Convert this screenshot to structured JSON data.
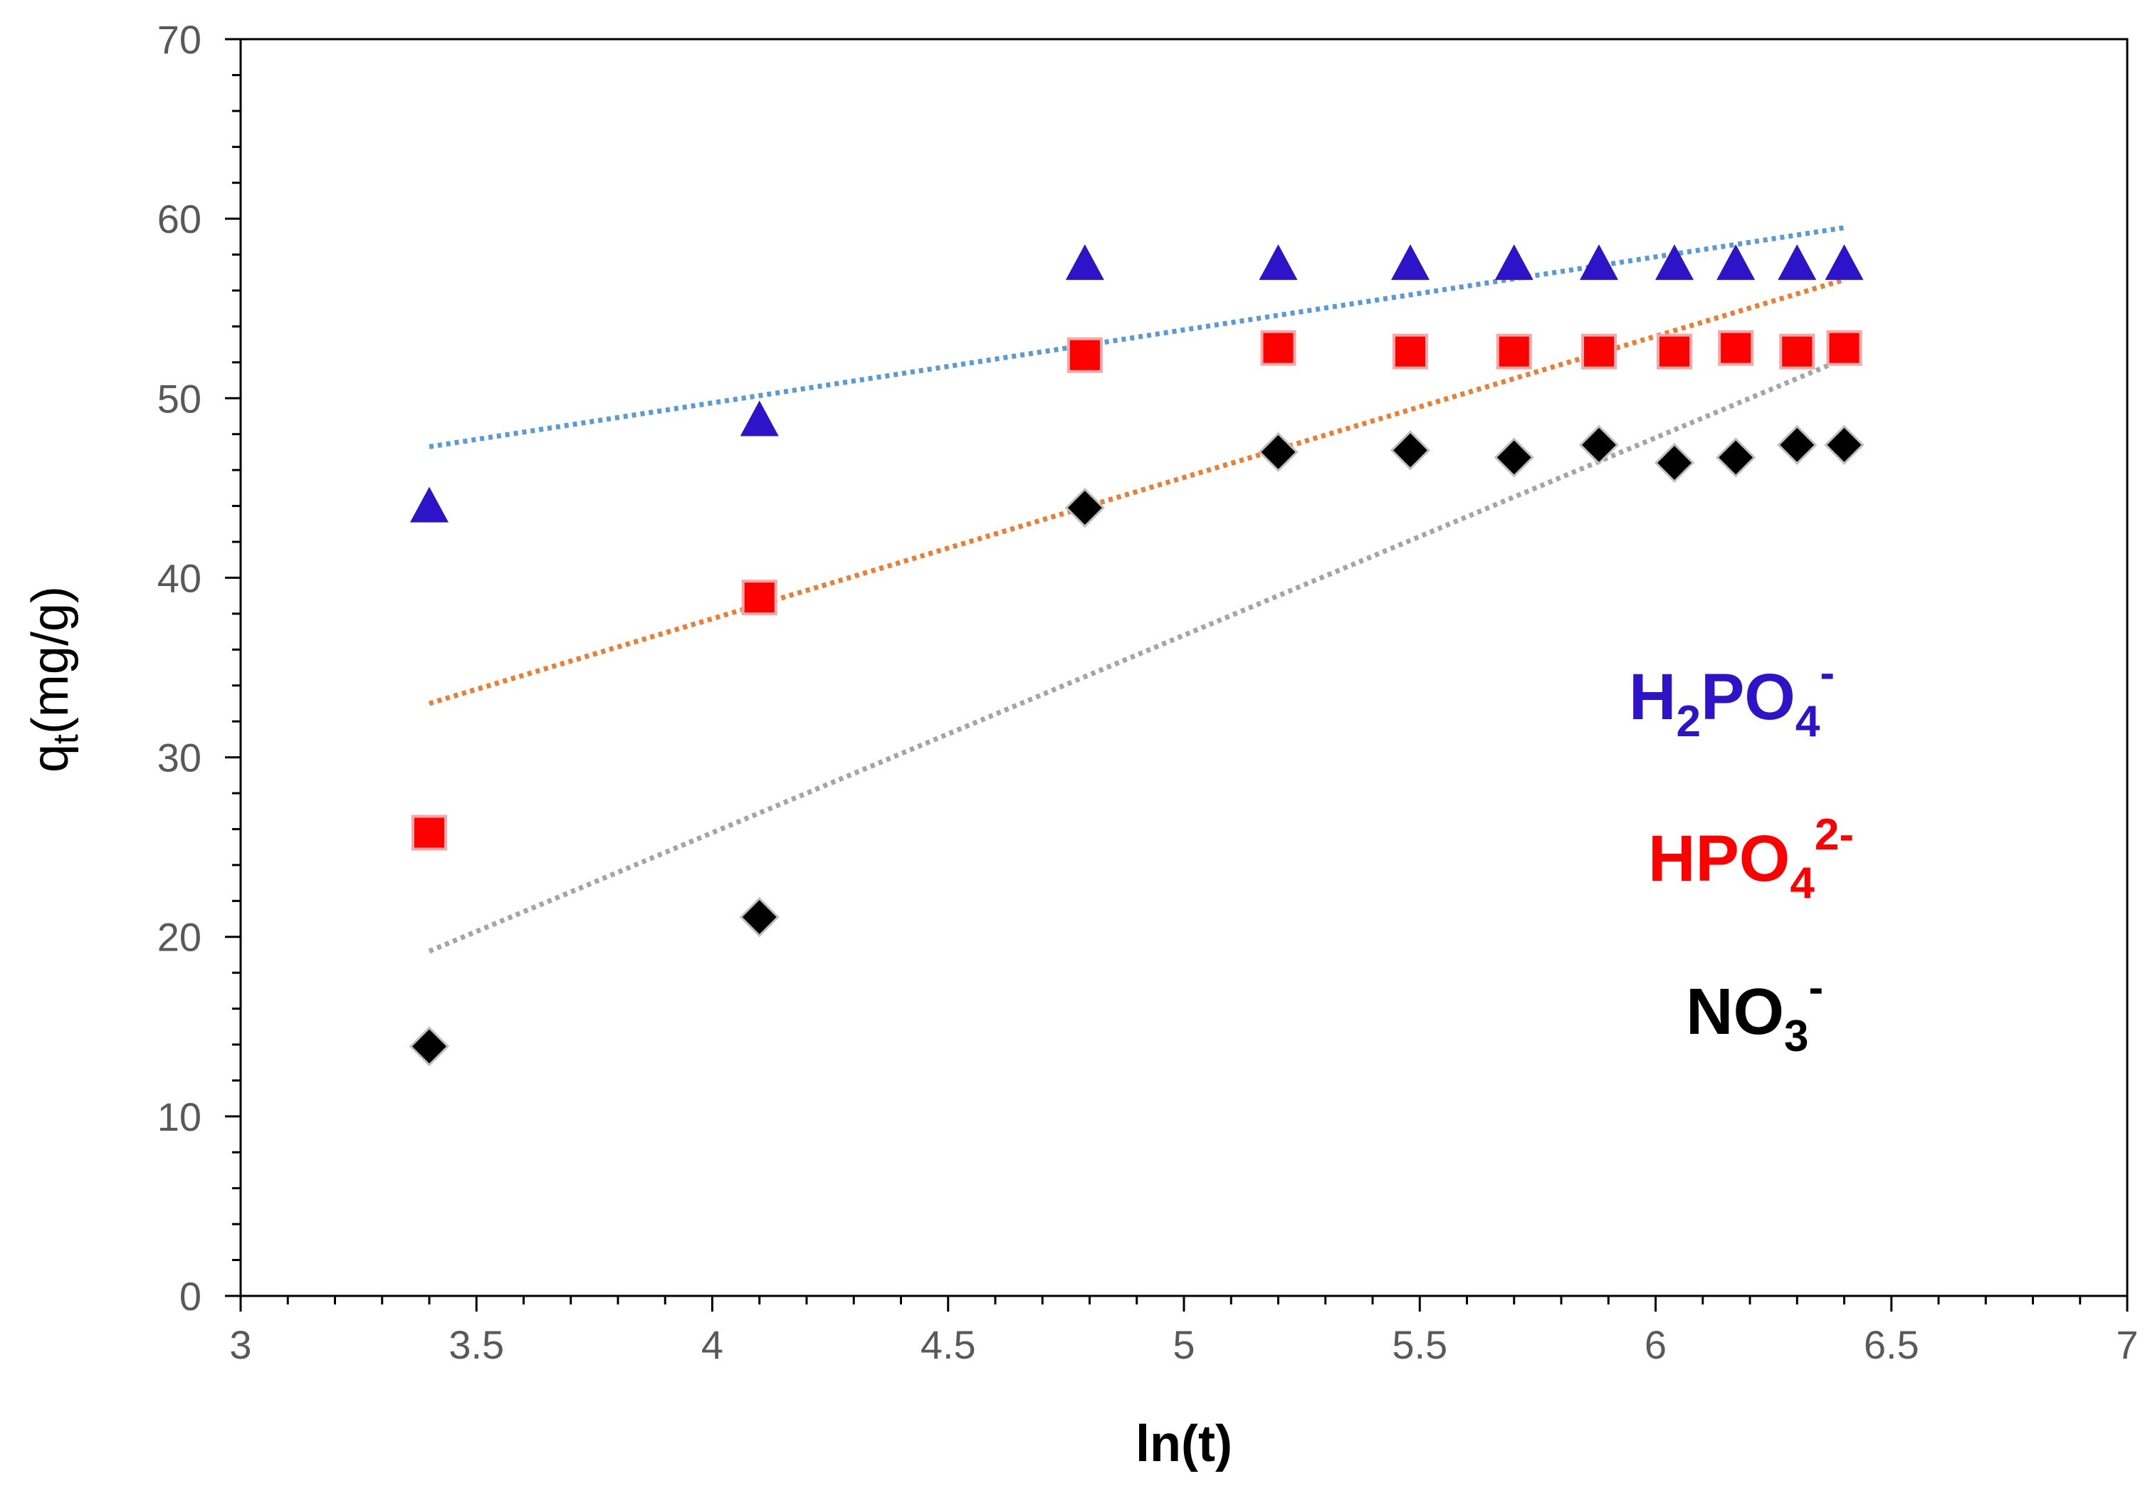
{
  "chart_data": {
    "type": "scatter",
    "title": "",
    "xlabel": "ln(t)",
    "ylabel_main": "q",
    "ylabel_sub": "t",
    "ylabel_unit": "(mg/g)",
    "xlim": [
      3,
      7
    ],
    "ylim": [
      0,
      70
    ],
    "x_ticks": [
      3,
      3.5,
      4,
      4.5,
      5,
      5.5,
      6,
      6.5,
      7
    ],
    "x_tick_labels": [
      "3",
      "3.5",
      "4",
      "4.5",
      "5",
      "5.5",
      "6",
      "6.5",
      "7"
    ],
    "y_ticks": [
      0,
      10,
      20,
      30,
      40,
      50,
      60,
      70
    ],
    "y_tick_labels": [
      "0",
      "10",
      "20",
      "30",
      "40",
      "50",
      "60",
      "70"
    ],
    "grid": false,
    "legend_position": "right",
    "series": [
      {
        "name": "H2PO4-",
        "label_parts": [
          "H",
          "2",
          "PO",
          "4",
          "-"
        ],
        "marker": "triangle",
        "color": "#2E14C8",
        "trend_color": "#5B9BD5",
        "x": [
          3.4,
          4.1,
          4.79,
          5.2,
          5.48,
          5.7,
          5.88,
          6.04,
          6.17,
          6.3,
          6.4
        ],
        "y": [
          44.0,
          48.8,
          57.5,
          57.5,
          57.5,
          57.5,
          57.5,
          57.5,
          57.5,
          57.5,
          57.5
        ],
        "trendline": {
          "x": [
            3.4,
            6.4
          ],
          "y": [
            47.3,
            59.5
          ]
        }
      },
      {
        "name": "HPO42-",
        "label_parts": [
          "HPO",
          "4",
          "2-"
        ],
        "marker": "square",
        "color": "#FF0000",
        "trend_color": "#ED7D31",
        "x": [
          3.4,
          4.1,
          4.79,
          5.2,
          5.48,
          5.7,
          5.88,
          6.04,
          6.17,
          6.3,
          6.4
        ],
        "y": [
          25.8,
          38.9,
          52.4,
          52.8,
          52.6,
          52.6,
          52.6,
          52.6,
          52.8,
          52.6,
          52.8
        ],
        "trendline": {
          "x": [
            3.4,
            6.4
          ],
          "y": [
            33.0,
            56.6
          ]
        }
      },
      {
        "name": "NO3-",
        "label_parts": [
          "NO",
          "3",
          "-"
        ],
        "marker": "diamond",
        "color": "#000000",
        "trend_color": "#A5A5A5",
        "x": [
          3.4,
          4.1,
          4.79,
          5.2,
          5.48,
          5.7,
          5.88,
          6.04,
          6.17,
          6.3,
          6.4
        ],
        "y": [
          13.9,
          21.1,
          43.9,
          47.0,
          47.1,
          46.7,
          47.4,
          46.4,
          46.7,
          47.4,
          47.4
        ],
        "trendline": {
          "x": [
            3.4,
            6.4
          ],
          "y": [
            19.2,
            52.2
          ]
        }
      }
    ]
  }
}
